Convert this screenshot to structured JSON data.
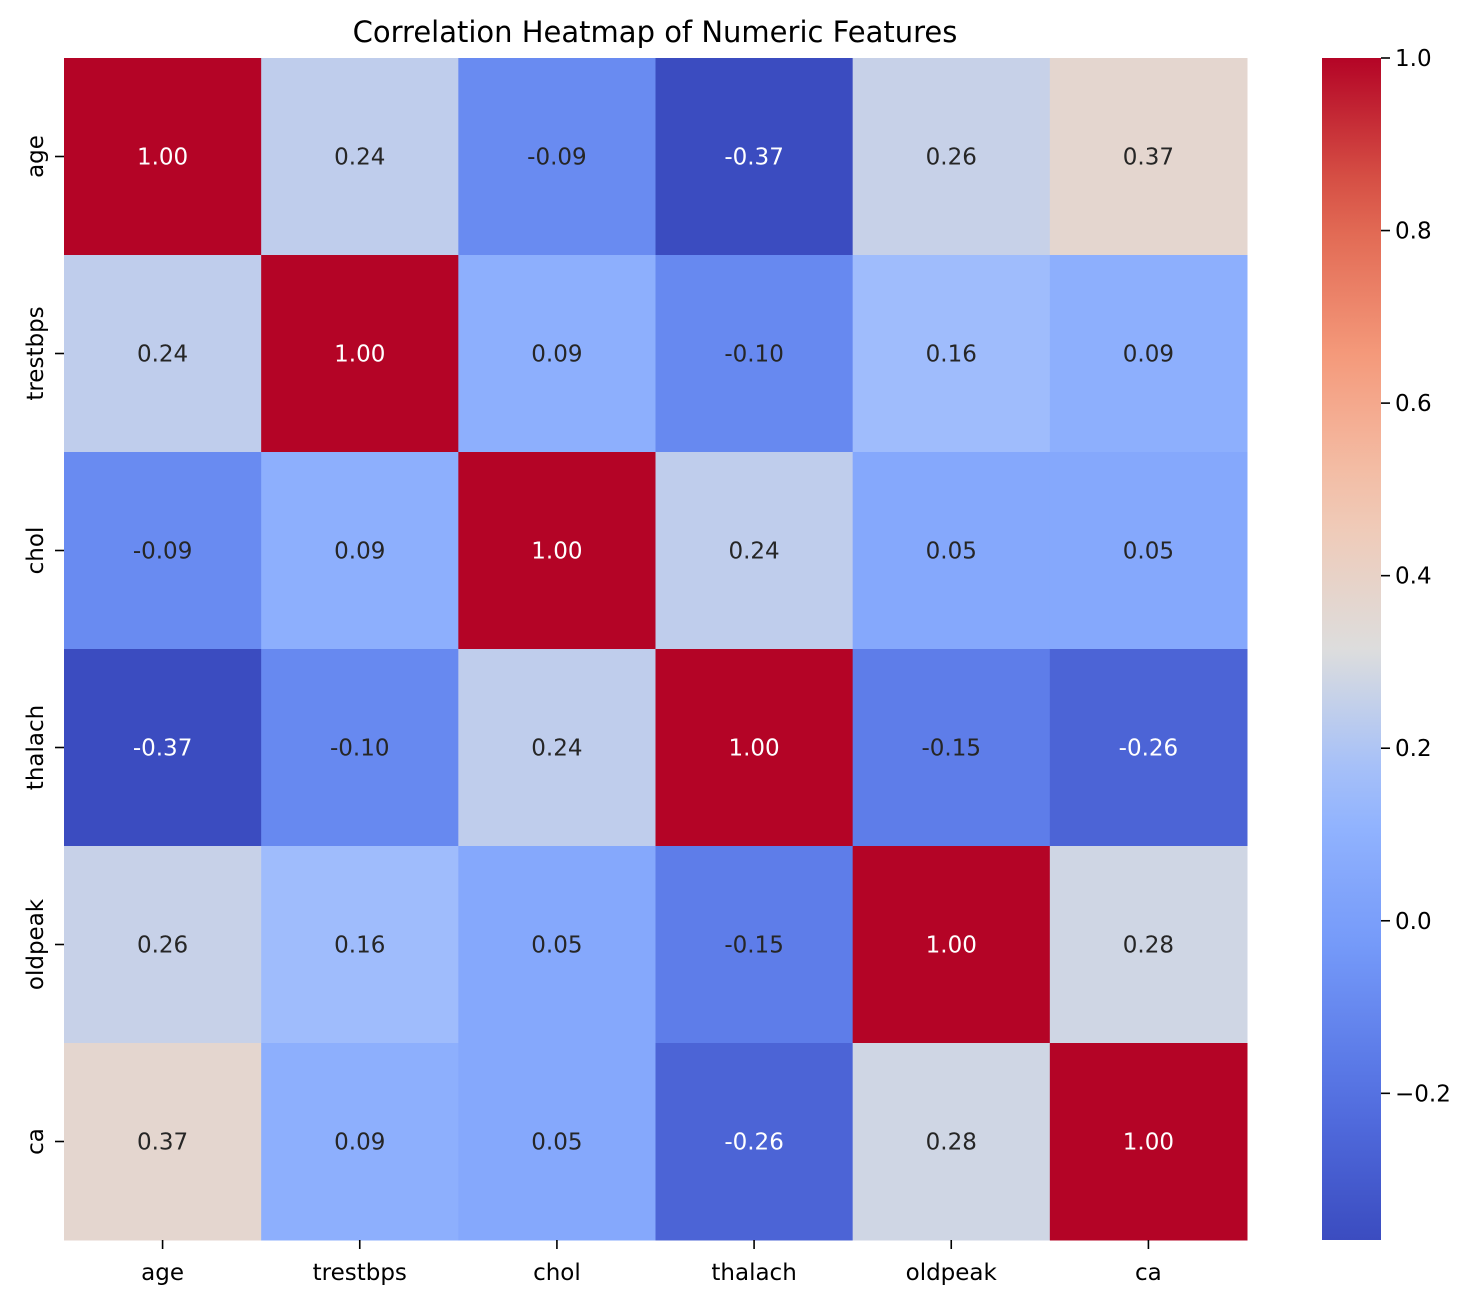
{
  "chart_data": {
    "type": "heatmap",
    "title": "Correlation Heatmap of Numeric Features",
    "x_categories": [
      "age",
      "trestbps",
      "chol",
      "thalach",
      "oldpeak",
      "ca"
    ],
    "y_categories": [
      "age",
      "trestbps",
      "chol",
      "thalach",
      "oldpeak",
      "ca"
    ],
    "values": [
      [
        1.0,
        0.24,
        -0.09,
        -0.37,
        0.26,
        0.37
      ],
      [
        0.24,
        1.0,
        0.09,
        -0.1,
        0.16,
        0.09
      ],
      [
        -0.09,
        0.09,
        1.0,
        0.24,
        0.05,
        0.05
      ],
      [
        -0.37,
        -0.1,
        0.24,
        1.0,
        -0.15,
        -0.26
      ],
      [
        0.26,
        0.16,
        0.05,
        -0.15,
        1.0,
        0.28
      ],
      [
        0.37,
        0.09,
        0.05,
        -0.26,
        0.28,
        1.0
      ]
    ],
    "colormap": "coolwarm",
    "colorbar": {
      "range": [
        -0.37,
        1.0
      ],
      "ticks": [
        -0.2,
        0.0,
        0.2,
        0.4,
        0.6,
        0.8,
        1.0
      ],
      "tick_labels": [
        "−0.2",
        "0.0",
        "0.2",
        "0.4",
        "0.6",
        "0.8",
        "1.0"
      ]
    },
    "annotations": "two decimals",
    "grid": false,
    "legend": "colorbar-right"
  }
}
